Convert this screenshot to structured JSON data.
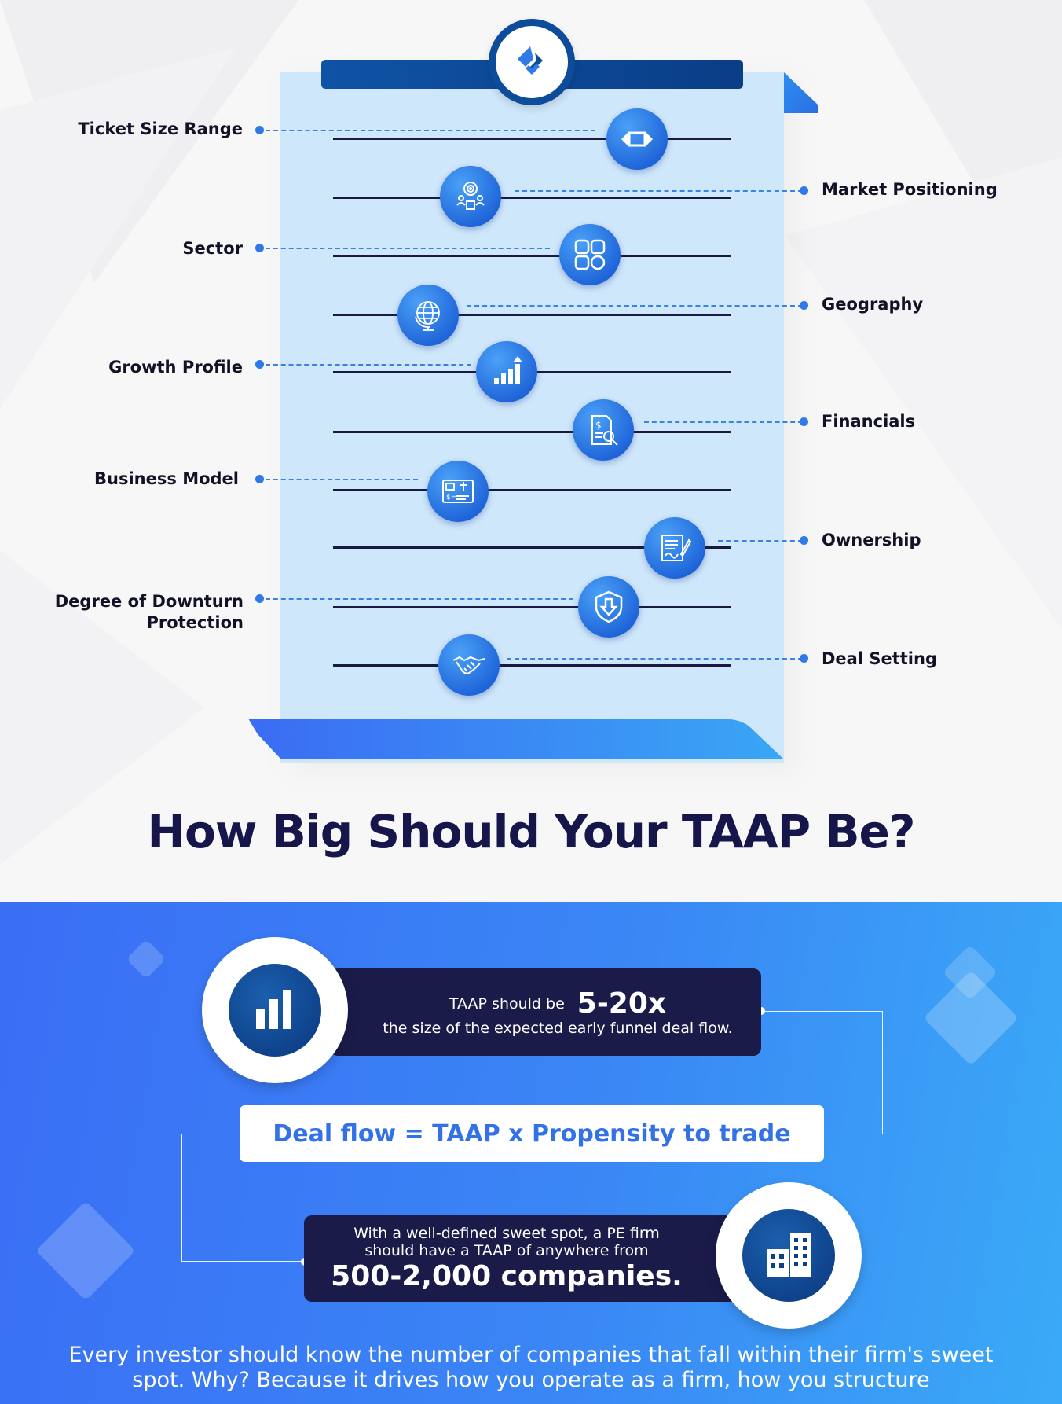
{
  "logo": {
    "icon": "brand-logo-icon",
    "accent": "#2f7ae6",
    "ring": "#0d4c9a"
  },
  "criteria": [
    {
      "label": "Ticket Size Range",
      "icon": "arrows-horizontal-icon"
    },
    {
      "label": "Market Positioning",
      "icon": "target-people-icon"
    },
    {
      "label": "Sector",
      "icon": "grid-squares-icon"
    },
    {
      "label": "Geography",
      "icon": "globe-icon"
    },
    {
      "label": "Growth Profile",
      "icon": "bar-chart-up-icon"
    },
    {
      "label": "Financials",
      "icon": "document-search-icon"
    },
    {
      "label": "Business Model",
      "icon": "business-model-icon"
    },
    {
      "label": "Ownership",
      "icon": "signed-document-icon"
    },
    {
      "label": "Degree of Downturn Protection",
      "icon": "shield-down-icon"
    },
    {
      "label": "Deal Setting",
      "icon": "handshake-icon"
    }
  ],
  "heading": "How Big Should Your TAAP Be?",
  "taap_card": {
    "prefix": "TAAP should be",
    "multiple": "5-20x",
    "suffix": "the size of the expected early funnel deal flow.",
    "icon": "bar-chart-icon"
  },
  "formula": "Deal flow = TAAP x Propensity to trade",
  "sweet_spot_card": {
    "line1": "With a well-defined sweet spot, a PE firm",
    "line2": "should have a TAAP of anywhere from",
    "range": "500-2,000 companies.",
    "icon": "office-building-icon"
  },
  "footer": "Every investor should know the number of companies that fall within their firm's sweet spot. Why? Because it drives how you operate as a firm, how you structure",
  "colors": {
    "navy": "#1b1b4a",
    "heading": "#16164a",
    "accent_blue": "#2f7ae6",
    "board": "#cfe7fb",
    "gradient_start": "#3a6ef5",
    "gradient_end": "#3aaaf6"
  }
}
